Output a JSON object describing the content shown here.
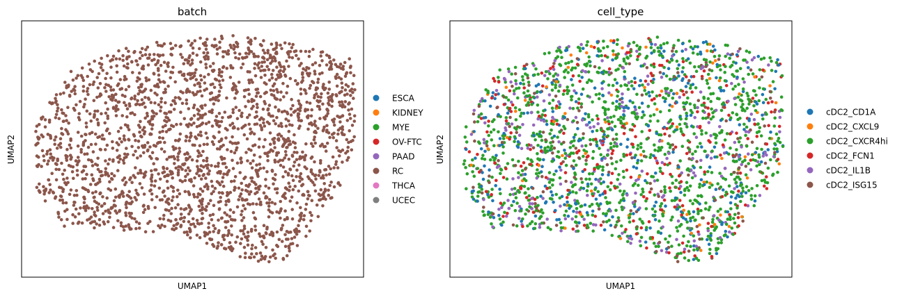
{
  "chart_data": [
    {
      "type": "scatter",
      "title": "batch",
      "xlabel": "UMAP1",
      "ylabel": "UMAP2",
      "grid": false,
      "ticks": false,
      "legend_position": "right",
      "legend": [
        {
          "name": "ESCA",
          "color": "#1f77b4"
        },
        {
          "name": "KIDNEY",
          "color": "#ff7f0e"
        },
        {
          "name": "MYE",
          "color": "#2ca02c"
        },
        {
          "name": "OV-FTC",
          "color": "#d62728"
        },
        {
          "name": "PAAD",
          "color": "#9467bd"
        },
        {
          "name": "RC",
          "color": "#8c564b"
        },
        {
          "name": "THCA",
          "color": "#e377c2"
        },
        {
          "name": "UCEC",
          "color": "#7f7f7f"
        }
      ],
      "point_color": "#8c564b"
    },
    {
      "type": "scatter",
      "title": "cell_type",
      "xlabel": "UMAP1",
      "ylabel": "UMAP2",
      "grid": false,
      "ticks": false,
      "legend_position": "right",
      "legend": [
        {
          "name": "cDC2_CD1A",
          "color": "#1f77b4"
        },
        {
          "name": "cDC2_CXCL9",
          "color": "#ff7f0e"
        },
        {
          "name": "cDC2_CXCR4hi",
          "color": "#2ca02c"
        },
        {
          "name": "cDC2_FCN1",
          "color": "#d62728"
        },
        {
          "name": "cDC2_IL1B",
          "color": "#9467bd"
        },
        {
          "name": "cDC2_ISG15",
          "color": "#8c564b"
        }
      ],
      "category_weights": [
        0.16,
        0.035,
        0.5,
        0.1,
        0.13,
        0.075
      ]
    }
  ]
}
